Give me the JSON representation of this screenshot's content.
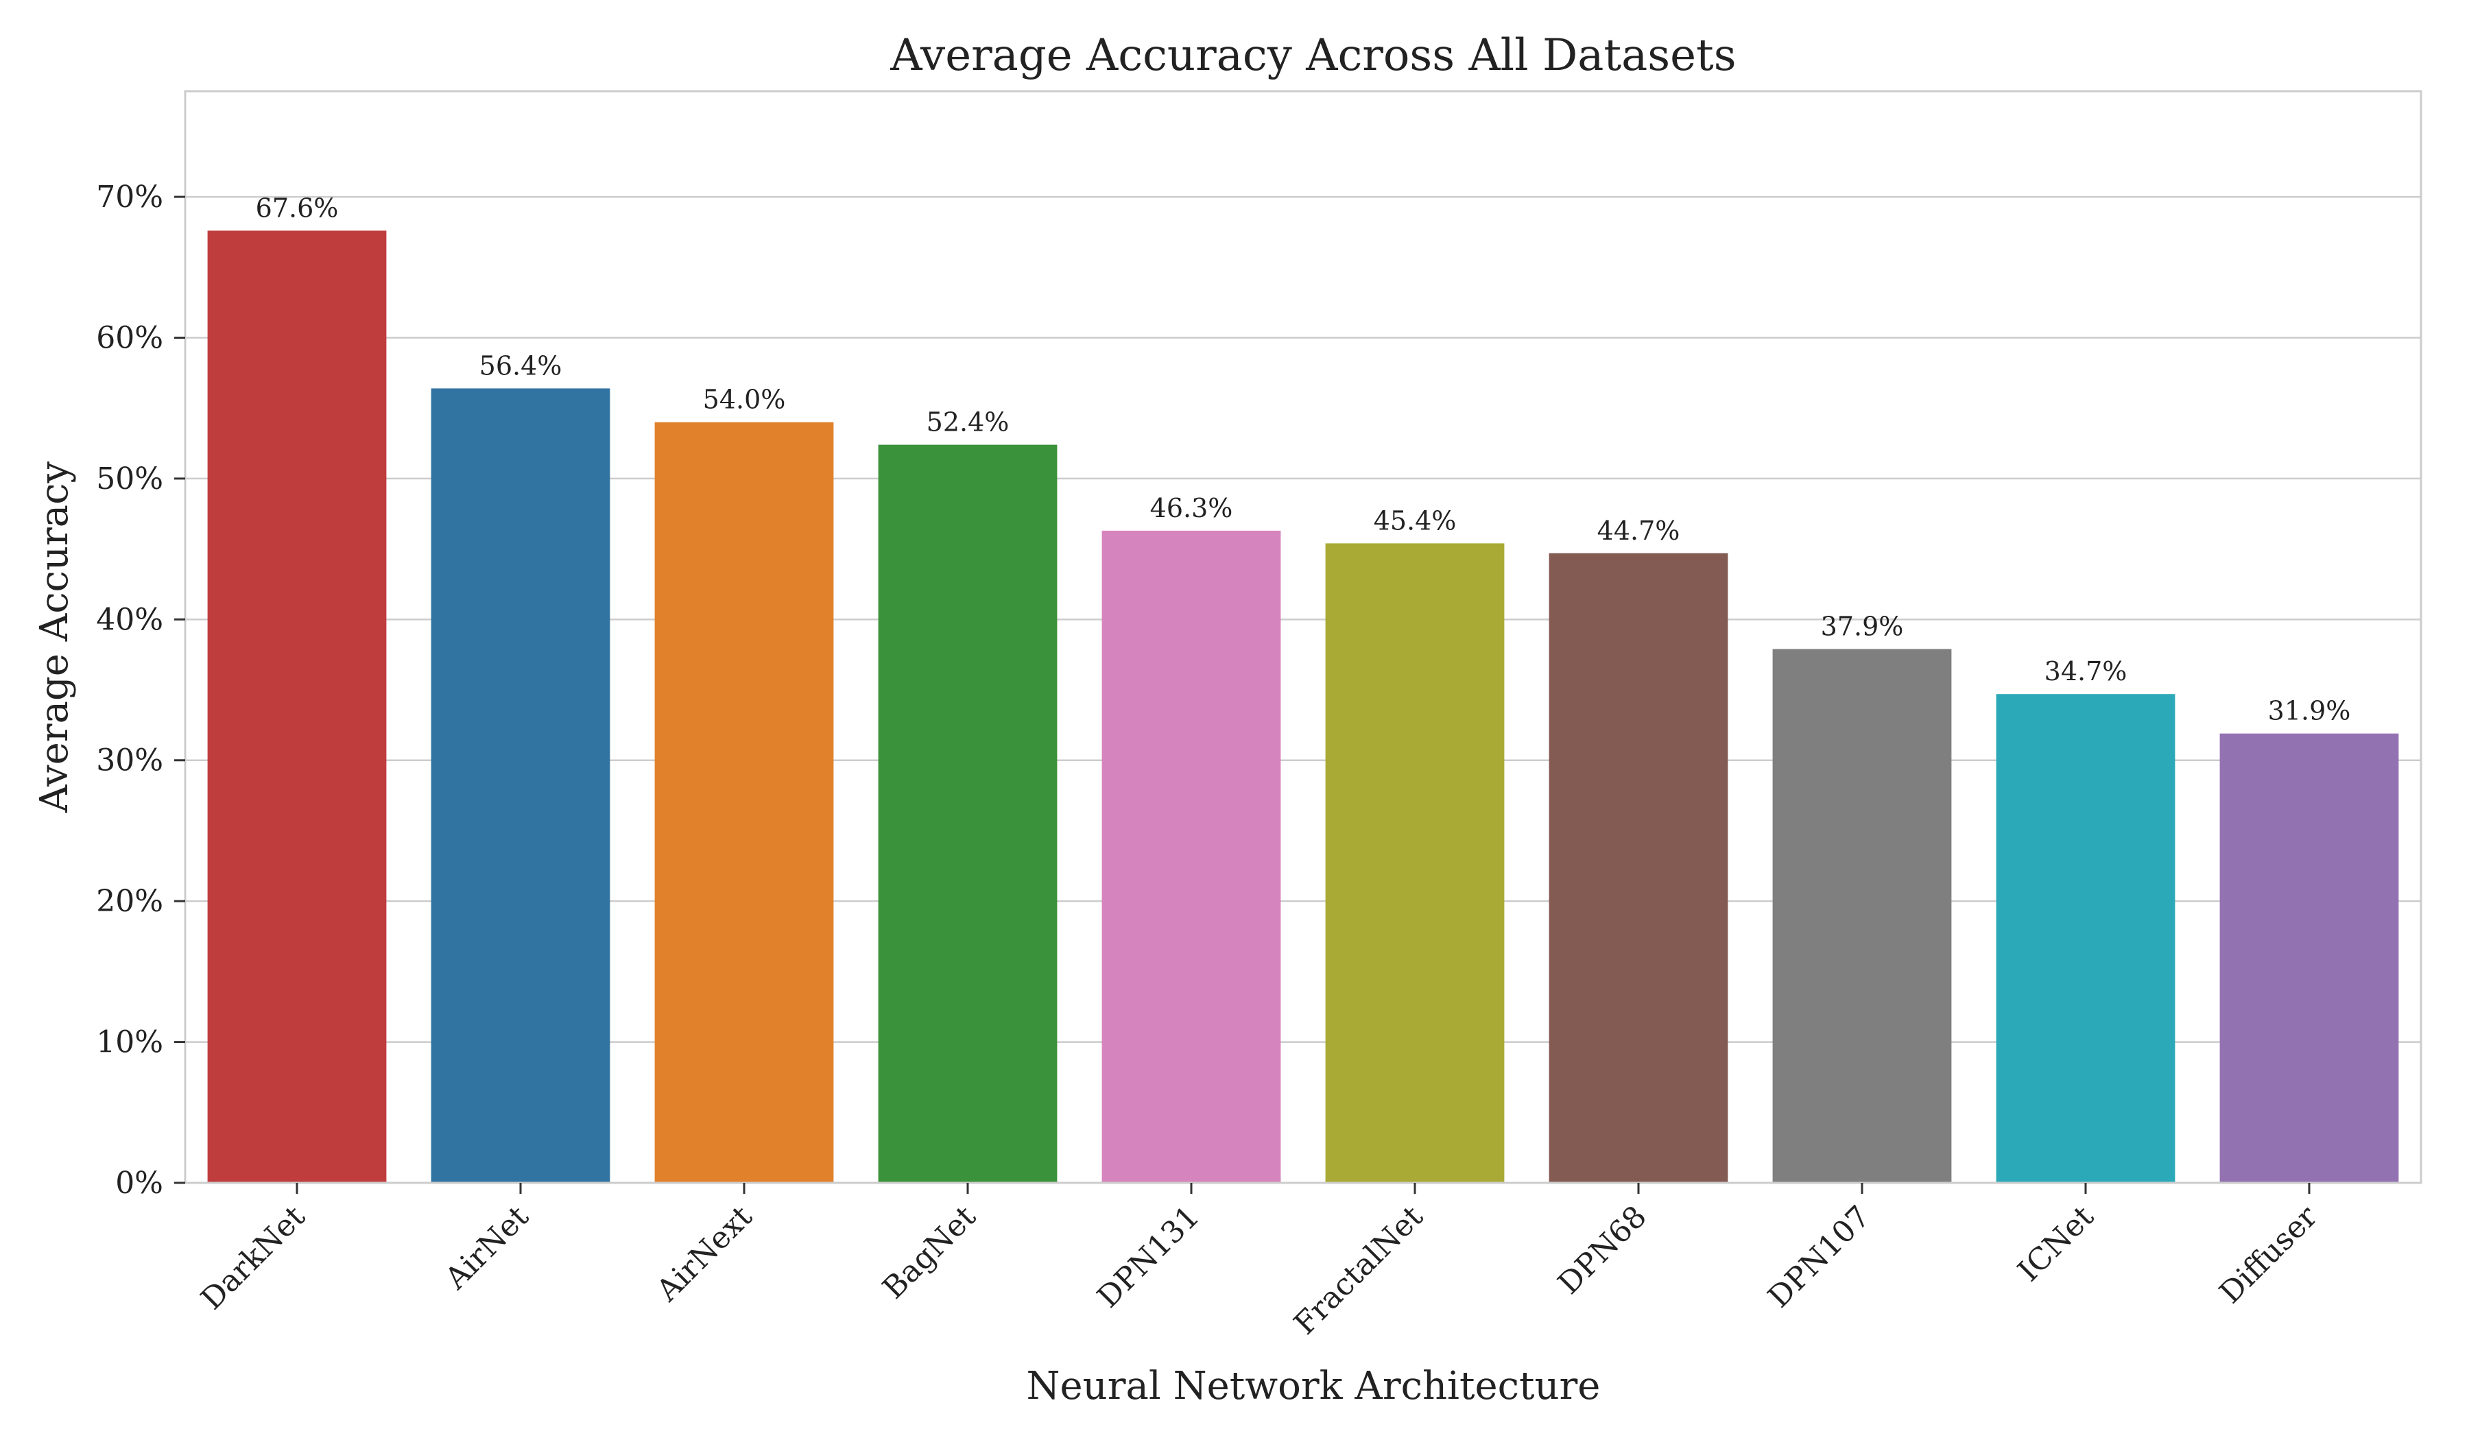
{
  "chart_data": {
    "type": "bar",
    "title": "Average Accuracy Across All Datasets",
    "xlabel": "Neural Network Architecture",
    "ylabel": "Average Accuracy",
    "categories": [
      "DarkNet",
      "AirNet",
      "AirNext",
      "BagNet",
      "DPN131",
      "FractalNet",
      "DPN68",
      "DPN107",
      "ICNet",
      "Diffuser"
    ],
    "values": [
      67.6,
      56.4,
      54.0,
      52.4,
      46.3,
      45.4,
      44.7,
      37.9,
      34.7,
      31.9
    ],
    "data_labels": [
      "67.6%",
      "56.4%",
      "54.0%",
      "52.4%",
      "46.3%",
      "45.4%",
      "44.7%",
      "37.9%",
      "34.7%",
      "31.9%"
    ],
    "colors": [
      "#c03d3e",
      "#3274a1",
      "#e1812c",
      "#3a923a",
      "#d684bd",
      "#a9aa35",
      "#845b53",
      "#7f7f7f",
      "#2ca9b8",
      "#9372b2"
    ],
    "ylim": [
      0,
      77.5
    ],
    "yticks": [
      0,
      10,
      20,
      30,
      40,
      50,
      60,
      70
    ],
    "ytick_labels": [
      "0%",
      "10%",
      "20%",
      "30%",
      "40%",
      "50%",
      "60%",
      "70%"
    ],
    "grid": "horizontal",
    "legend": "none"
  }
}
